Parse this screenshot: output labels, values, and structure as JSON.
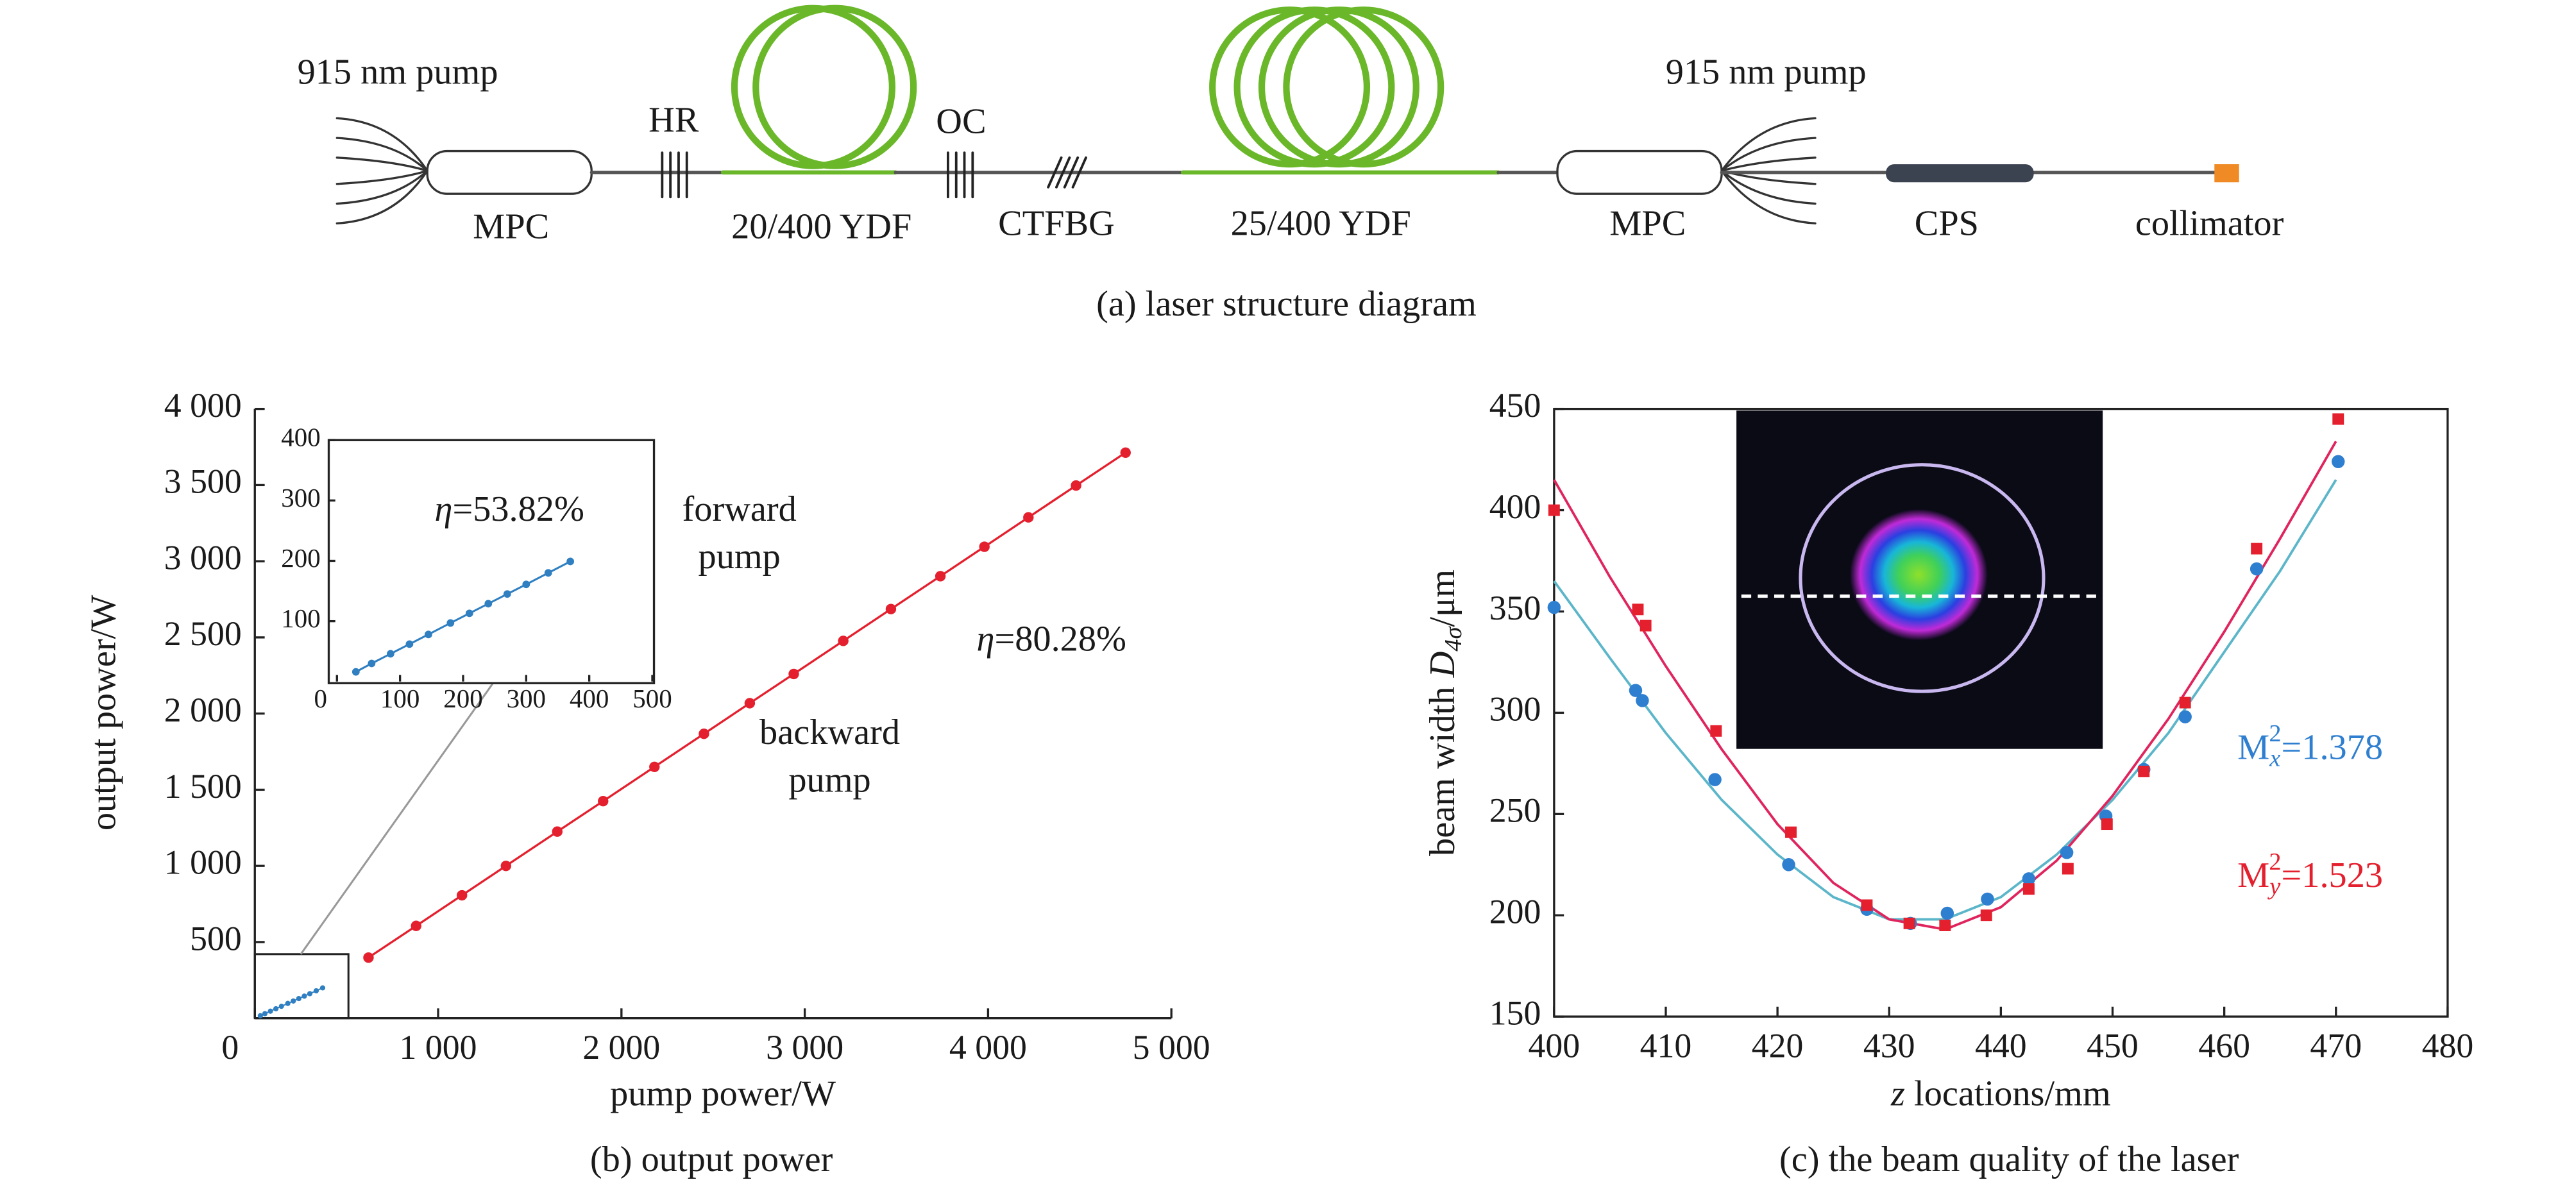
{
  "diagram": {
    "pump_left": "915 nm pump",
    "hr": "HR",
    "mpc_left": "MPC",
    "ydf1": "20/400 YDF",
    "oc": "OC",
    "ctfbg": "CTFBG",
    "ydf2": "25/400 YDF",
    "mpc_right": "MPC",
    "pump_right": "915 nm pump",
    "cps": "CPS",
    "collimator": "collimator",
    "caption": "(a) laser structure diagram"
  },
  "chart_data": [
    {
      "type": "line",
      "caption": "(b) output power",
      "x_label": "pump power/W",
      "y_label": "output power/W",
      "xlim": [
        0,
        5000
      ],
      "ylim": [
        0,
        4000
      ],
      "xticks": [
        0,
        {
          "value": 1000,
          "label": "1 000"
        },
        {
          "value": 2000,
          "label": "2 000"
        },
        {
          "value": 3000,
          "label": "3 000"
        },
        {
          "value": 4000,
          "label": "4 000"
        },
        {
          "value": 5000,
          "label": "5 000"
        }
      ],
      "yticks": [
        500,
        {
          "value": 1000,
          "label": "1 000"
        },
        {
          "value": 1500,
          "label": "1 500"
        },
        {
          "value": 2000,
          "label": "2 000"
        },
        {
          "value": 2500,
          "label": "2 500"
        },
        {
          "value": 3000,
          "label": "3 000"
        },
        {
          "value": 3500,
          "label": "3 500"
        },
        {
          "value": 4000,
          "label": "4 000"
        }
      ],
      "series": [
        {
          "name": "backward pump",
          "color": "#e5202e",
          "annotation": [
            "η",
            "=80.28%"
          ],
          "x": [
            620,
            880,
            1130,
            1370,
            1650,
            1900,
            2180,
            2450,
            2700,
            2940,
            3210,
            3470,
            3740,
            3980,
            4220,
            4480,
            4750
          ],
          "values": [
            398,
            606,
            807,
            1000,
            1225,
            1425,
            1650,
            1867,
            2068,
            2260,
            2477,
            2686,
            2902,
            3095,
            3288,
            3497,
            3713
          ]
        },
        {
          "name": "forward pump",
          "color": "#2f7fc1",
          "annotation": [
            "η",
            "=53.82%"
          ],
          "x": [
            30,
            55,
            85,
            115,
            145,
            180,
            210,
            240,
            270,
            300,
            335,
            370
          ],
          "values": [
            16,
            30,
            46,
            62,
            78,
            97,
            113,
            129,
            145,
            161,
            180,
            199
          ]
        }
      ],
      "inset": {
        "xlim": [
          0,
          500
        ],
        "ylim": [
          0,
          400
        ],
        "xticks": [
          0,
          100,
          200,
          300,
          400,
          500
        ],
        "yticks": [
          100,
          200,
          300,
          400
        ]
      }
    },
    {
      "type": "scatter",
      "caption": "(c) the beam quality of the laser",
      "x_label": [
        "z",
        " locations/mm"
      ],
      "y_label": [
        "beam width ",
        "D",
        "4σ",
        "/μm"
      ],
      "xlim": [
        400,
        480
      ],
      "ylim": [
        150,
        450
      ],
      "xticks": [
        400,
        410,
        420,
        430,
        440,
        450,
        460,
        470,
        480
      ],
      "yticks": [
        150,
        200,
        250,
        300,
        350,
        400,
        450
      ],
      "fit_x": [
        400,
        405,
        410,
        415,
        420,
        425,
        430,
        435,
        440,
        445,
        450,
        455,
        460,
        465,
        470
      ],
      "series": [
        {
          "label": {
            "base": "M",
            "sub": "x",
            "sup": "2",
            "text": "=1.378"
          },
          "color": "#2f7fd0",
          "fit_color": "#5cb6c9",
          "marker": "circle",
          "x": [
            400,
            407.3,
            407.9,
            414.4,
            421,
            428,
            431.9,
            435.2,
            438.8,
            442.5,
            445.9,
            449.4,
            452.8,
            456.5,
            462.9,
            470.2
          ],
          "values": [
            352,
            311,
            306,
            267,
            225,
            203,
            196,
            201,
            208,
            218,
            231,
            249,
            272,
            298,
            371,
            424
          ],
          "fit_values": [
            365,
            327,
            290,
            257,
            230,
            209,
            198,
            198,
            209,
            230,
            257,
            290,
            330,
            370,
            415
          ]
        },
        {
          "label": {
            "base": "M",
            "sub": "y",
            "sup": "2",
            "text": "=1.523"
          },
          "color": "#e5202e",
          "fit_color": "#e0245e",
          "marker": "square",
          "x": [
            400,
            407.5,
            408.2,
            414.5,
            421.2,
            428,
            431.8,
            435,
            438.7,
            442.5,
            446,
            449.5,
            452.8,
            456.5,
            462.9,
            470.2
          ],
          "values": [
            400,
            351,
            343,
            291,
            241,
            205,
            196,
            195,
            200,
            213,
            223,
            245,
            271,
            305,
            381,
            445
          ],
          "fit_values": [
            415,
            367,
            323,
            282,
            245,
            216,
            198,
            193,
            204,
            227,
            259,
            297,
            340,
            386,
            434
          ]
        }
      ]
    }
  ]
}
